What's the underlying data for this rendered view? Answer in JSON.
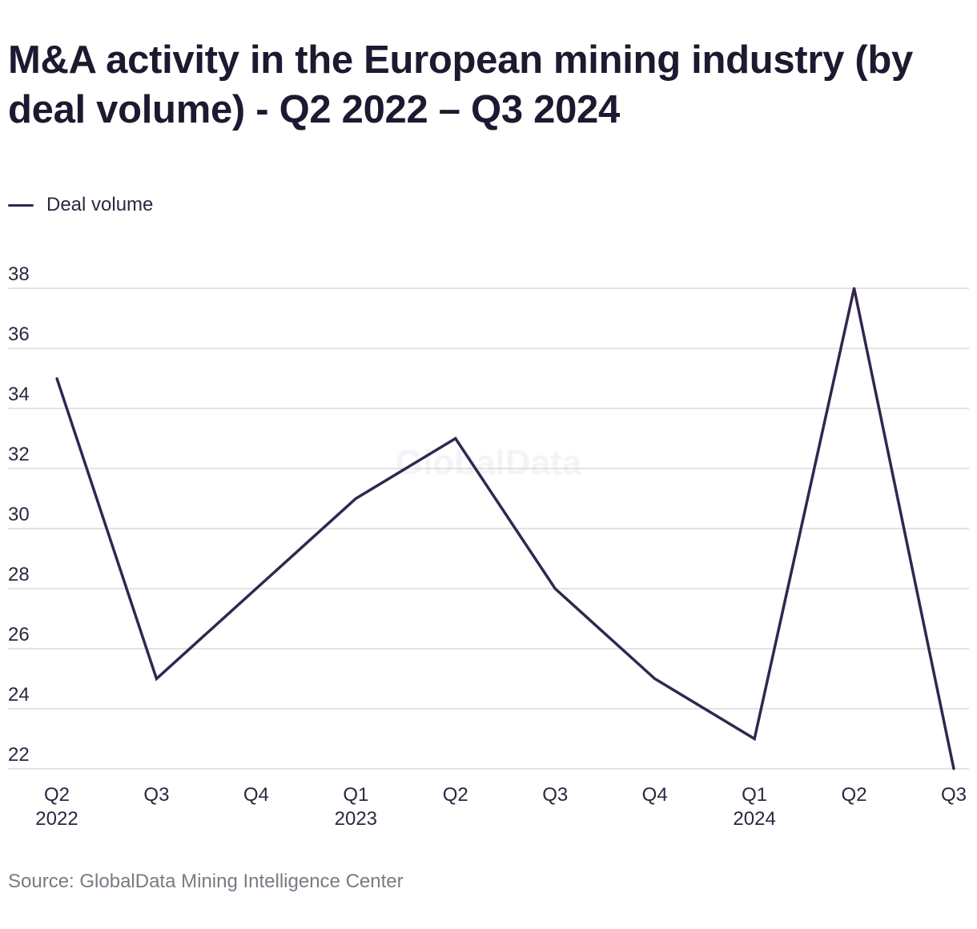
{
  "title": "M&A activity in the European mining industry (by deal volume) - Q2 2022 – Q3 2024",
  "legend": {
    "label": "Deal volume"
  },
  "source": "Source: GlobalData Mining Intelligence Center",
  "watermark": "GlobalData",
  "colors": {
    "line": "#33264f",
    "grid": "#dadada",
    "text": "#2a2840",
    "watermark": "#f4f4f6"
  },
  "chart_data": {
    "type": "line",
    "categories": [
      "Q2",
      "Q3",
      "Q4",
      "Q1",
      "Q2",
      "Q3",
      "Q4",
      "Q1",
      "Q2",
      "Q3"
    ],
    "year_labels": [
      "2022",
      "",
      "",
      "2023",
      "",
      "",
      "",
      "2024",
      "",
      ""
    ],
    "series": [
      {
        "name": "Deal volume",
        "values": [
          35,
          25,
          28,
          31,
          33,
          28,
          25,
          23,
          38,
          22
        ]
      }
    ],
    "yticks": [
      22,
      24,
      26,
      28,
      30,
      32,
      34,
      36,
      38
    ],
    "ylim": [
      22,
      38
    ],
    "grid": true,
    "legend_position": "top-left"
  }
}
